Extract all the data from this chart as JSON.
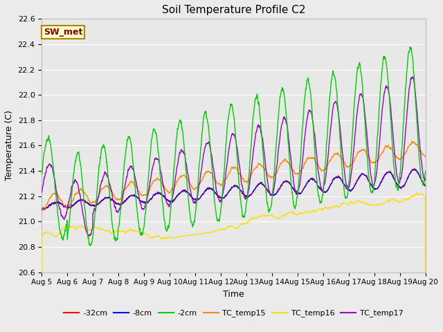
{
  "title": "Soil Temperature Profile C2",
  "xlabel": "Time",
  "ylabel": "Temperature (C)",
  "ylim": [
    20.6,
    22.6
  ],
  "xlim": [
    0,
    15
  ],
  "x_tick_labels": [
    "Aug 5",
    "Aug 6",
    "Aug 7",
    "Aug 8",
    "Aug 9",
    "Aug 10",
    "Aug 11",
    "Aug 12",
    "Aug 13",
    "Aug 14",
    "Aug 15",
    "Aug 16",
    "Aug 17",
    "Aug 18",
    "Aug 19",
    "Aug 20"
  ],
  "series_colors": {
    "-32cm": "#ff0000",
    "-8cm": "#0000ff",
    "-2cm": "#00cc00",
    "TC_temp15": "#ff8800",
    "TC_temp16": "#ffdd00",
    "TC_temp17": "#9900cc"
  },
  "legend_labels": [
    "-32cm",
    "-8cm",
    "-2cm",
    "TC_temp15",
    "TC_temp16",
    "TC_temp17"
  ],
  "annotation_text": "SW_met",
  "annotation_bg": "#ffffcc",
  "annotation_border": "#aa8800",
  "annotation_text_color": "#880000",
  "bg_color": "#e8e8e8",
  "plot_bg": "#e8e8e8",
  "grid_color": "#ffffff",
  "n_points": 2160
}
